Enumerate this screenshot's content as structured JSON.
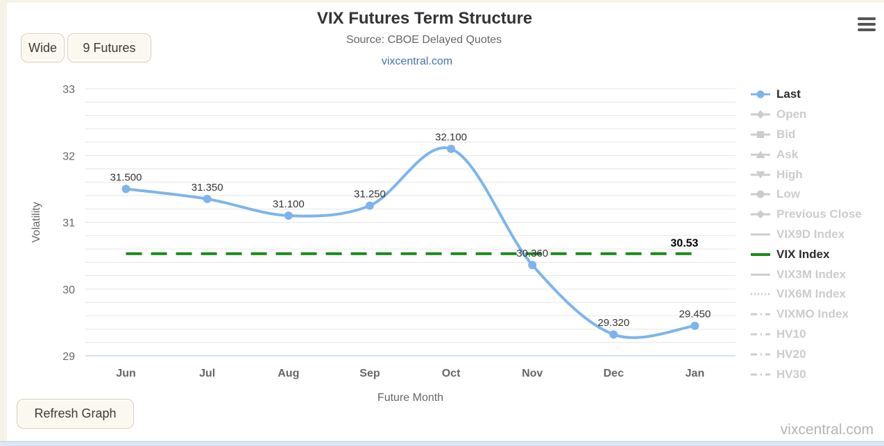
{
  "header": {
    "link": "vixcentral.com"
  },
  "toolbar": {
    "wide_label": "Wide",
    "futures_label": "9 Futures",
    "refresh_label": "Refresh Graph",
    "menu_icon": "hamburger-icon"
  },
  "watermark": "vixcentral.com",
  "chart_data": {
    "type": "line",
    "title": "VIX Futures Term Structure",
    "subtitle": "Source: CBOE Delayed Quotes",
    "categories": [
      "Jun",
      "Jul",
      "Aug",
      "Sep",
      "Oct",
      "Nov",
      "Dec",
      "Jan"
    ],
    "series": [
      {
        "name": "Last",
        "values": [
          31.5,
          31.35,
          31.1,
          31.25,
          32.1,
          30.36,
          29.32,
          29.45
        ],
        "labels": [
          "31.500",
          "31.350",
          "31.100",
          "31.250",
          "32.100",
          "30.360",
          "29.320",
          "29.450"
        ],
        "color": "#7cb5ec",
        "marker": "circle",
        "line_style": "spline"
      }
    ],
    "reference_line": {
      "name": "VIX Index",
      "value": 30.53,
      "label": "30.53",
      "color": "#178a17",
      "style": "dashed"
    },
    "xlabel": "Future Month",
    "ylabel": "Volatility",
    "ylim": [
      29,
      33
    ],
    "y_major_ticks": [
      29,
      30,
      31,
      32,
      33
    ],
    "y_minor_step": 0.2,
    "grid": true,
    "legend_position": "right",
    "colors": {
      "grid": "#e5e5e5",
      "axis_line": "#ccd6eb",
      "tick_label": "#666666",
      "data_label": "#333333",
      "inactive_legend": "#cccccc",
      "active_legend": "#2b2b2b"
    }
  },
  "legend": {
    "items": [
      {
        "label": "Last",
        "shape": "circle",
        "line": "solid",
        "color": "#7cb5ec",
        "active": true
      },
      {
        "label": "Open",
        "shape": "diamond",
        "line": "solid",
        "color": "#cccccc",
        "active": false
      },
      {
        "label": "Bid",
        "shape": "square",
        "line": "solid",
        "color": "#cccccc",
        "active": false
      },
      {
        "label": "Ask",
        "shape": "triangle-up",
        "line": "solid",
        "color": "#cccccc",
        "active": false
      },
      {
        "label": "High",
        "shape": "triangle-down",
        "line": "solid",
        "color": "#cccccc",
        "active": false
      },
      {
        "label": "Low",
        "shape": "circle",
        "line": "solid",
        "color": "#cccccc",
        "active": false
      },
      {
        "label": "Previous Close",
        "shape": "diamond",
        "line": "solid",
        "color": "#cccccc",
        "active": false
      },
      {
        "label": "VIX9D Index",
        "shape": "none",
        "line": "solid",
        "color": "#cccccc",
        "active": false
      },
      {
        "label": "VIX Index",
        "shape": "none",
        "line": "solid",
        "color": "#178a17",
        "active": true
      },
      {
        "label": "VIX3M Index",
        "shape": "none",
        "line": "solid",
        "color": "#cccccc",
        "active": false
      },
      {
        "label": "VIX6M Index",
        "shape": "none",
        "line": "dotted",
        "color": "#cccccc",
        "active": false
      },
      {
        "label": "VIXMO Index",
        "shape": "none",
        "line": "dashdot",
        "color": "#cccccc",
        "active": false
      },
      {
        "label": "HV10",
        "shape": "none",
        "line": "dashdot",
        "color": "#cccccc",
        "active": false
      },
      {
        "label": "HV20",
        "shape": "none",
        "line": "dashdot",
        "color": "#cccccc",
        "active": false
      },
      {
        "label": "HV30",
        "shape": "none",
        "line": "dashdot",
        "color": "#cccccc",
        "active": false
      }
    ]
  }
}
